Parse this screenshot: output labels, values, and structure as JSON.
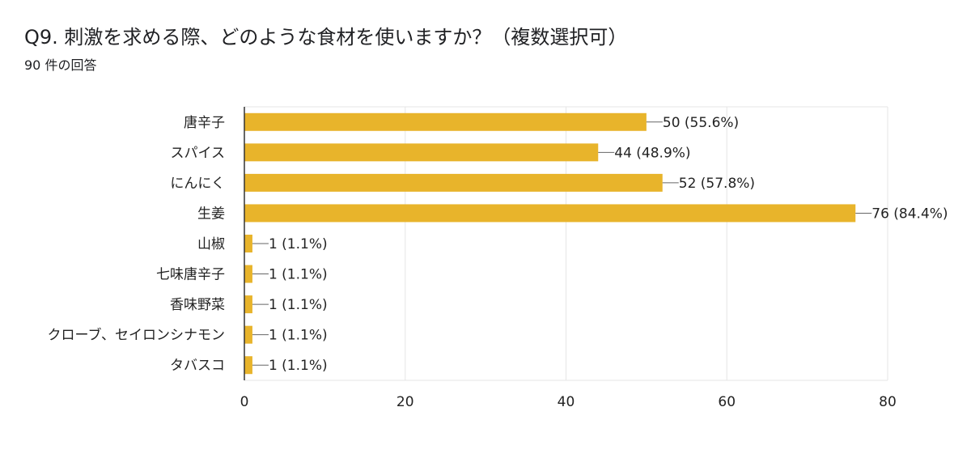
{
  "header": {
    "title": "Q9.  刺激を求める際、どのような食材を使いますか？（複数選択可）",
    "response_count": "90 件の回答"
  },
  "colors": {
    "bar": "#e8b42b",
    "grid": "#e6e6e6",
    "axis": "#333333",
    "text": "#222222",
    "leader": "#666666"
  },
  "chart_data": {
    "type": "bar",
    "orientation": "horizontal",
    "title": "Q9.  刺激を求める際、どのような食材を使いますか？（複数選択可）",
    "subtitle": "90 件の回答",
    "categories": [
      "唐辛子",
      "スパイス",
      "にんにく",
      "生姜",
      "山椒",
      "七味唐辛子",
      "香味野菜",
      "クローブ、セイロンシナモン",
      "タバスコ"
    ],
    "values": [
      50,
      44,
      52,
      76,
      1,
      1,
      1,
      1,
      1
    ],
    "value_labels": [
      "50 (55.6%)",
      "44 (48.9%)",
      "52 (57.8%)",
      "76 (84.4%)",
      "1 (1.1%)",
      "1 (1.1%)",
      "1 (1.1%)",
      "1 (1.1%)",
      "1 (1.1%)"
    ],
    "xlim": [
      0,
      80
    ],
    "xticks": [
      0,
      20,
      40,
      60,
      80
    ],
    "xlabel": "",
    "ylabel": "",
    "grid": true,
    "legend": "none"
  }
}
